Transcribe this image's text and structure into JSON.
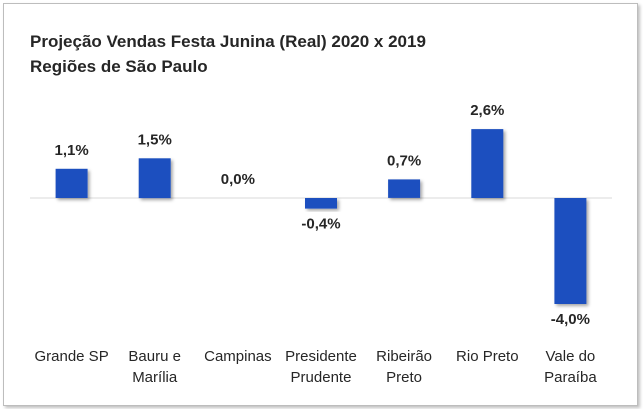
{
  "chart_data": {
    "type": "bar",
    "title_lines": [
      "Projeção Vendas Festa Junina (Real) 2020 x 2019",
      "Regiões de São Paulo"
    ],
    "categories": [
      [
        "Grande SP"
      ],
      [
        "Bauru e",
        "Marília"
      ],
      [
        "Campinas"
      ],
      [
        "Presidente",
        "Prudente"
      ],
      [
        "Ribeirão",
        "Preto"
      ],
      [
        "Rio Preto"
      ],
      [
        "Vale do",
        "Paraíba"
      ]
    ],
    "values": [
      1.1,
      1.5,
      0.0,
      -0.4,
      0.7,
      2.6,
      -4.0
    ],
    "value_labels": [
      "1,1%",
      "1,5%",
      "0,0%",
      "-0,4%",
      "0,7%",
      "2,6%",
      "-4,0%"
    ],
    "ylim": [
      -4.0,
      2.6
    ],
    "bar_color": "#1f4fbf",
    "axis_color": "#d9d9d9",
    "grid": false,
    "legend": "none"
  }
}
